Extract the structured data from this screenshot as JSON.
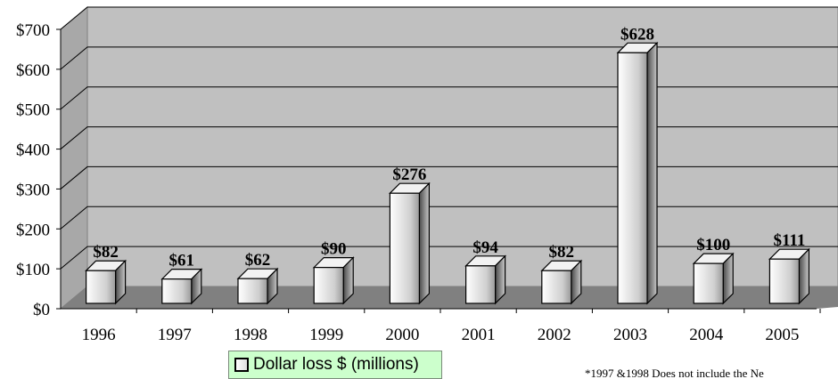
{
  "chart_data": {
    "type": "bar",
    "categories": [
      "1996",
      "1997",
      "1998",
      "1999",
      "2000",
      "2001",
      "2002",
      "2003",
      "2004",
      "2005"
    ],
    "values": [
      82,
      61,
      62,
      90,
      276,
      94,
      82,
      628,
      100,
      111
    ],
    "data_labels": [
      "$82",
      "$61",
      "$62",
      "$90",
      "$276",
      "$94",
      "$82",
      "$628",
      "$100",
      "$111"
    ],
    "y_ticks": [
      "$0",
      "$100",
      "$200",
      "$300",
      "$400",
      "$500",
      "$600",
      "$700"
    ],
    "ylim": [
      0,
      700
    ],
    "grid": true,
    "three_d": true,
    "legend_position": "bottom",
    "series": [
      {
        "name": "Dollar loss $ (millions)",
        "values": [
          82,
          61,
          62,
          90,
          276,
          94,
          82,
          628,
          100,
          111
        ]
      }
    ]
  },
  "legend": {
    "label": "Dollar loss $ (millions)"
  },
  "footnote": "*1997 &1998 Does not include the Ne",
  "colors": {
    "wall": "#c0c0c0",
    "floor": "#808080",
    "legend_bg": "#ccffcc"
  }
}
